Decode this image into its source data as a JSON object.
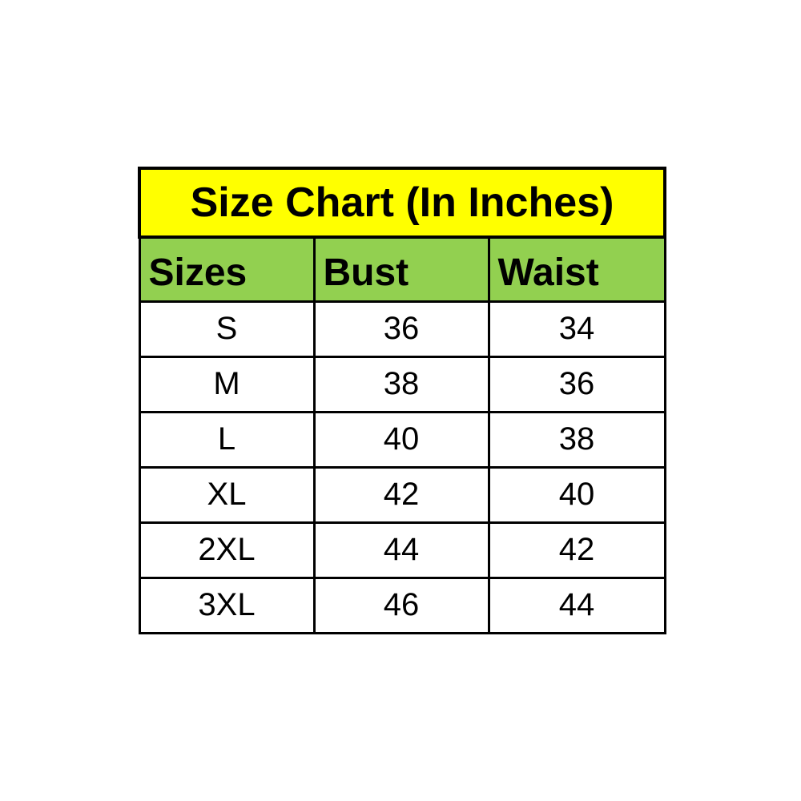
{
  "table": {
    "title": "Size Chart (In Inches)",
    "columns": [
      "Sizes",
      "Bust",
      "Waist"
    ],
    "rows": [
      {
        "size": "S",
        "bust": "36",
        "waist": "34"
      },
      {
        "size": "M",
        "bust": "38",
        "waist": "36"
      },
      {
        "size": "L",
        "bust": "40",
        "waist": "38"
      },
      {
        "size": "XL",
        "bust": "42",
        "waist": "40"
      },
      {
        "size": "2XL",
        "bust": "44",
        "waist": "42"
      },
      {
        "size": "3XL",
        "bust": "46",
        "waist": "44"
      }
    ]
  },
  "colors": {
    "title_background": "#FFFF00",
    "header_background": "#92D050",
    "cell_background": "#FFFFFF",
    "border": "#000000",
    "text": "#000000"
  },
  "chart_data": {
    "type": "table",
    "title": "Size Chart (In Inches)",
    "columns": [
      "Sizes",
      "Bust",
      "Waist"
    ],
    "rows": [
      [
        "S",
        36,
        34
      ],
      [
        "M",
        38,
        36
      ],
      [
        "L",
        40,
        38
      ],
      [
        "XL",
        42,
        40
      ],
      [
        "2XL",
        44,
        42
      ],
      [
        "3XL",
        46,
        44
      ]
    ],
    "units": "inches",
    "layout": "title row (yellow) spanning 3 columns, green header row, 6 white data rows, black grid borders"
  }
}
